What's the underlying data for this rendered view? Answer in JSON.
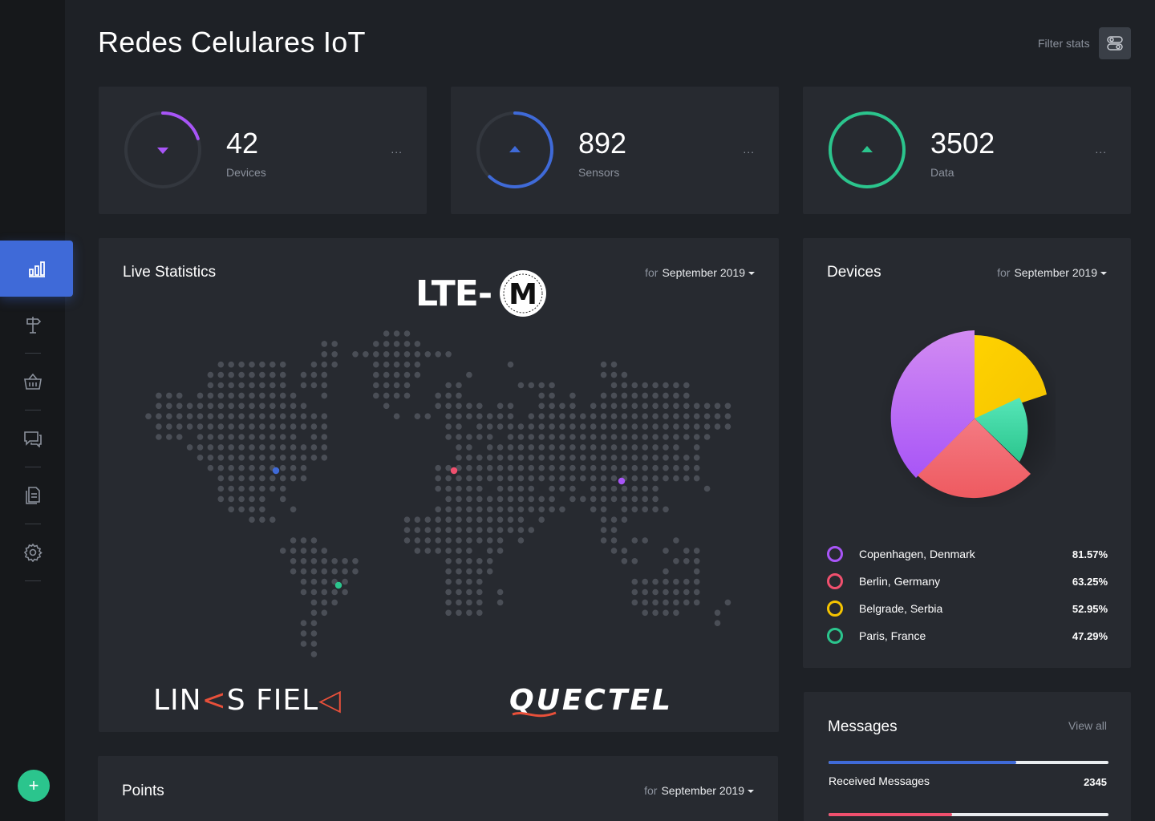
{
  "header": {
    "title": "Redes Celulares IoT",
    "filter_label": "Filter stats"
  },
  "stats": [
    {
      "value": "42",
      "label": "Devices",
      "menu": "...",
      "progress": 0.2,
      "color": "#a855f7",
      "trend": "down"
    },
    {
      "value": "892",
      "label": "Sensors",
      "menu": "...",
      "progress": 0.62,
      "color": "#3f6ad8",
      "trend": "up"
    },
    {
      "value": "3502",
      "label": "Data",
      "menu": "...",
      "progress": 1.0,
      "color": "#2bc58d",
      "trend": "up"
    }
  ],
  "live": {
    "title": "Live Statistics",
    "period_for": "for",
    "period": "September 2019",
    "logo_lte": "LTE-M",
    "logo_links": "LINKS FIELD",
    "logo_quectel": "QUECTEL"
  },
  "devices": {
    "title": "Devices",
    "period_for": "for",
    "period": "September 2019",
    "legend": [
      {
        "name": "Copenhagen, Denmark",
        "pct": "81.57%",
        "color": "#a855f7"
      },
      {
        "name": "Berlin, Germany",
        "pct": "63.25%",
        "color": "#f0506e"
      },
      {
        "name": "Belgrade, Serbia",
        "pct": "52.95%",
        "color": "#f5c400"
      },
      {
        "name": "Paris, France",
        "pct": "47.29%",
        "color": "#2bc58d"
      }
    ]
  },
  "points": {
    "title": "Points",
    "period_for": "for",
    "period": "September 2019"
  },
  "messages": {
    "title": "Messages",
    "view_all": "View all",
    "rows": [
      {
        "label": "Received Messages",
        "value": "2345",
        "progress": 0.67,
        "color": "#3f6ad8"
      },
      {
        "label": "",
        "value": "",
        "progress": 0.44,
        "color": "#f0506e"
      }
    ]
  },
  "colors": {
    "accent": "#3f6ad8",
    "success": "#2bc58d",
    "background": "#1e2126",
    "card": "#272a30"
  }
}
